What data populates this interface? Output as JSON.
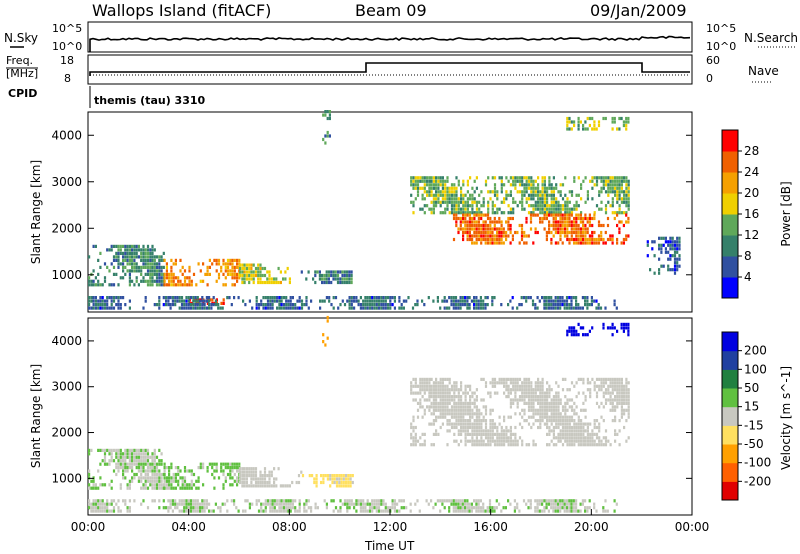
{
  "header": {
    "station": "Wallops Island (fitACF)",
    "beam": "Beam 09",
    "date": "09/Jan/2009"
  },
  "noise_panel": {
    "left_label": "N.Sky",
    "left_ticks": [
      "10^5",
      "10^0"
    ],
    "right_ticks": [
      "10^5",
      "10^0"
    ],
    "right_label": "N.Search"
  },
  "freq_panel": {
    "left_label_1": "Freq.",
    "left_label_2": "[MHz]",
    "left_ticks": [
      "18",
      "8"
    ],
    "right_ticks": [
      "60",
      "0"
    ],
    "right_label": "Nave",
    "cpid_label": "CPID",
    "cpid_value": "themis (tau) 3310"
  },
  "colors": {
    "power": [
      "#0000ff",
      "#3050a0",
      "#35806a",
      "#5fa85a",
      "#f0d000",
      "#f5a000",
      "#f06000",
      "#ff0000"
    ],
    "velocity": [
      "#e00000",
      "#ff6000",
      "#ffa000",
      "#ffe060",
      "#c8c8c0",
      "#60c040",
      "#208040",
      "#2040a0",
      "#0000e0"
    ],
    "ground_scatter": "#c8c8c0"
  },
  "chart_data": [
    {
      "type": "heatmap",
      "quantity": "power",
      "ylabel": "Slant Range [km]",
      "yticks": [
        "1000",
        "2000",
        "3000",
        "4000"
      ],
      "ylim": [
        200,
        4500
      ],
      "xlim_hours": [
        0,
        24
      ],
      "colorbar_label": "Power [dB]",
      "colorbar_ticks": [
        "4",
        "8",
        "12",
        "16",
        "20",
        "24",
        "28"
      ],
      "colorbar_range": [
        0,
        30
      ],
      "regions": [
        {
          "t": [
            0.0,
            3.0
          ],
          "r": [
            750,
            1600
          ],
          "val": 10
        },
        {
          "t": [
            3.0,
            6.0
          ],
          "r": [
            750,
            1300
          ],
          "val": 22
        },
        {
          "t": [
            6.0,
            8.0
          ],
          "r": [
            800,
            1200
          ],
          "val": 16
        },
        {
          "t": [
            8.0,
            10.5
          ],
          "r": [
            800,
            1050
          ],
          "val": 9
        },
        {
          "t": [
            4.0,
            5.5
          ],
          "r": [
            350,
            450
          ],
          "val": 26
        },
        {
          "t": [
            0.0,
            21.0
          ],
          "r": [
            250,
            550
          ],
          "val": 7
        },
        {
          "t": [
            9.3,
            9.6
          ],
          "r": [
            3800,
            4500
          ],
          "val": 9
        },
        {
          "t": [
            12.8,
            21.5
          ],
          "r": [
            2300,
            3100
          ],
          "val": 13
        },
        {
          "t": [
            14.5,
            21.5
          ],
          "r": [
            1650,
            2300
          ],
          "val": 24
        },
        {
          "t": [
            19.0,
            21.5
          ],
          "r": [
            4100,
            4400
          ],
          "val": 14
        },
        {
          "t": [
            22.2,
            23.5
          ],
          "r": [
            1000,
            1800
          ],
          "val": 6
        }
      ]
    },
    {
      "type": "heatmap",
      "quantity": "velocity",
      "ylabel": "Slant Range [km]",
      "yticks": [
        "1000",
        "2000",
        "3000",
        "4000"
      ],
      "ylim": [
        200,
        4500
      ],
      "xlim_hours": [
        0,
        24
      ],
      "xticks": [
        "00:00",
        "04:00",
        "08:00",
        "12:00",
        "16:00",
        "20:00",
        "00:00"
      ],
      "xlabel": "Time UT",
      "colorbar_label": "Velocity [m s^-1]",
      "colorbar_ticks": [
        "-200",
        "-100",
        "-50",
        "-15",
        "15",
        "50",
        "100",
        "200"
      ],
      "colorbar_range": [
        -250,
        250
      ],
      "regions": [
        {
          "t": [
            0.0,
            3.0
          ],
          "r": [
            750,
            1600
          ],
          "val": 25
        },
        {
          "t": [
            3.0,
            6.0
          ],
          "r": [
            750,
            1300
          ],
          "val": 35
        },
        {
          "t": [
            6.0,
            8.5
          ],
          "r": [
            800,
            1200
          ],
          "val": 0
        },
        {
          "t": [
            8.5,
            10.5
          ],
          "r": [
            800,
            1050
          ],
          "val": -40
        },
        {
          "t": [
            0.0,
            21.0
          ],
          "r": [
            250,
            550
          ],
          "val": 20
        },
        {
          "t": [
            9.3,
            9.6
          ],
          "r": [
            3800,
            4500
          ],
          "val": -120
        },
        {
          "t": [
            12.8,
            21.5
          ],
          "r": [
            1700,
            3150
          ],
          "val": 0
        },
        {
          "t": [
            19.0,
            21.5
          ],
          "r": [
            4100,
            4400
          ],
          "val": 220
        }
      ]
    }
  ]
}
